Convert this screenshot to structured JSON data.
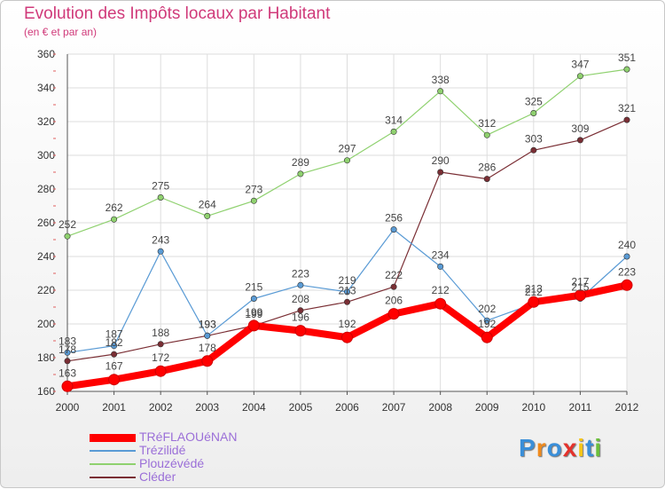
{
  "chart_data": {
    "type": "line",
    "title": "Evolution des Impôts locaux par Habitant",
    "subtitle": "(en € et par an)",
    "categories": [
      "2000",
      "2001",
      "2002",
      "2003",
      "2004",
      "2005",
      "2006",
      "2007",
      "2008",
      "2009",
      "2010",
      "2011",
      "2012"
    ],
    "ylim": [
      160,
      360
    ],
    "yticks": [
      160,
      180,
      200,
      220,
      240,
      260,
      280,
      300,
      320,
      340,
      360
    ],
    "grid": true,
    "legend_position": "bottom-left",
    "series": [
      {
        "name": "TRéFLAOUéNAN",
        "color": "#ff0000",
        "values": [
          163,
          167,
          172,
          178,
          199,
          196,
          192,
          206,
          212,
          192,
          213,
          217,
          223
        ]
      },
      {
        "name": "Trézilidé",
        "color": "#5a9bd5",
        "values": [
          183,
          187,
          243,
          193,
          215,
          223,
          219,
          256,
          234,
          202,
          212,
          215,
          240
        ]
      },
      {
        "name": "Plouzévédé",
        "color": "#8fd16f",
        "values": [
          252,
          262,
          275,
          264,
          273,
          289,
          297,
          314,
          338,
          312,
          325,
          347,
          351
        ]
      },
      {
        "name": "Cléder",
        "color": "#7a2e34",
        "values": [
          178,
          182,
          188,
          193,
          199,
          208,
          213,
          222,
          290,
          286,
          303,
          309,
          321
        ]
      }
    ]
  },
  "logo": {
    "text": "Proxiti",
    "letters": [
      "P",
      "r",
      "o",
      "x",
      "i",
      "t",
      "i"
    ],
    "colors": [
      "#3a8fd9",
      "#f08a1c",
      "#3a8fd9",
      "#e4322b",
      "#f5c518",
      "#3a8fd9",
      "#6cbf3c"
    ]
  }
}
